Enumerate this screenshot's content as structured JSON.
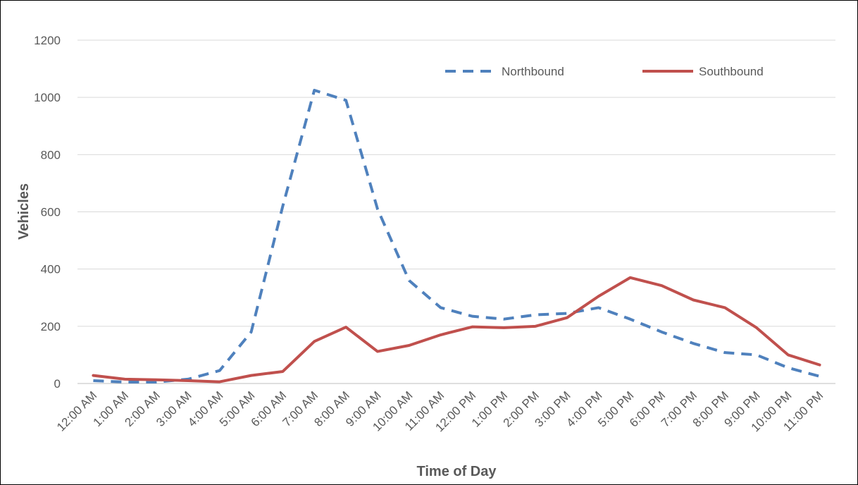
{
  "chart_data": {
    "type": "line",
    "title": "",
    "xlabel": "Time of Day",
    "ylabel": "Vehicles",
    "ylim": [
      0,
      1200
    ],
    "yticks": [
      0,
      200,
      400,
      600,
      800,
      1000,
      1200
    ],
    "grid": true,
    "legend_position": "top-right",
    "categories": [
      "12:00 AM",
      "1:00 AM",
      "2:00 AM",
      "3:00 AM",
      "4:00 AM",
      "5:00 AM",
      "6:00 AM",
      "7:00 AM",
      "8:00 AM",
      "9:00 AM",
      "10:00 AM",
      "11:00 AM",
      "12:00 PM",
      "1:00 PM",
      "2:00 PM",
      "3:00 PM",
      "4:00 PM",
      "5:00 PM",
      "6:00 PM",
      "7:00 PM",
      "8:00 PM",
      "9:00 PM",
      "10:00 PM",
      "11:00 PM"
    ],
    "series": [
      {
        "name": "Northbound",
        "color": "#4F81BD",
        "style": "dashed",
        "values": [
          10,
          5,
          5,
          15,
          45,
          180,
          620,
          1025,
          990,
          610,
          360,
          265,
          235,
          225,
          240,
          245,
          265,
          225,
          180,
          140,
          108,
          100,
          55,
          25
        ]
      },
      {
        "name": "Southbound",
        "color": "#C0504D",
        "style": "solid",
        "values": [
          28,
          15,
          13,
          10,
          6,
          28,
          42,
          147,
          197,
          112,
          133,
          170,
          198,
          195,
          200,
          230,
          305,
          370,
          342,
          292,
          265,
          195,
          100,
          65
        ]
      }
    ]
  }
}
